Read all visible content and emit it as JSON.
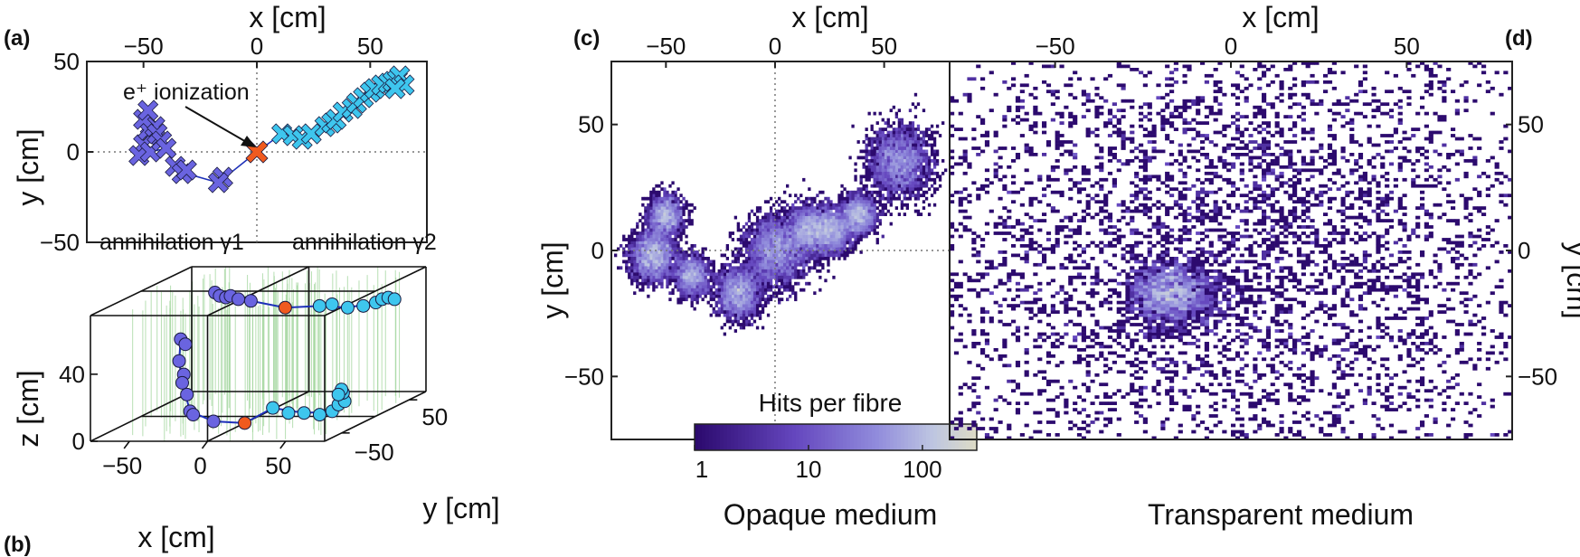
{
  "panels": {
    "a": {
      "tag": "(a)"
    },
    "b": {
      "tag": "(b)"
    },
    "c": {
      "tag": "(c)"
    },
    "d": {
      "tag": "(d)"
    }
  },
  "colors": {
    "gamma1": "#6a64e0",
    "gamma2": "#3ec6ee",
    "ionization": "#f05a1e",
    "track_line": "#1c2fb8",
    "fibres": "#9fd49a",
    "cmap_low": "#2c0a6e",
    "cmap_mid": "#8c86da",
    "cmap_high": "#d8d6c4"
  },
  "chart_data": [
    {
      "panel": "a",
      "type": "scatter",
      "xlabel": "x [cm]",
      "ylabel": "y [cm]",
      "xlim": [
        -75,
        75
      ],
      "ylim": [
        -50,
        50
      ],
      "xticks": [
        -50,
        0,
        50
      ],
      "yticks": [
        -50,
        0,
        50
      ],
      "annotation": "e⁺ ionization",
      "labels": [
        "annihilation γ1",
        "annihilation γ2"
      ],
      "series": [
        {
          "key": "gamma1",
          "values": [
            [
              -47,
              8
            ],
            [
              -50,
              4
            ],
            [
              -52,
              -2
            ],
            [
              -48,
              12
            ],
            [
              -45,
              14
            ],
            [
              -50,
              18
            ],
            [
              -48,
              23
            ],
            [
              -44,
              10
            ],
            [
              -47,
              0
            ],
            [
              -42,
              6
            ],
            [
              -40,
              2
            ],
            [
              -36,
              -8
            ],
            [
              -33,
              -12
            ],
            [
              -31,
              -10
            ],
            [
              -15,
              -14
            ],
            [
              -17,
              -17
            ]
          ]
        },
        {
          "key": "gamma2",
          "values": [
            [
              11,
              10
            ],
            [
              16,
              9
            ],
            [
              20,
              7
            ],
            [
              24,
              10
            ],
            [
              30,
              14
            ],
            [
              33,
              16
            ],
            [
              35,
              18
            ],
            [
              38,
              22
            ],
            [
              42,
              24
            ],
            [
              44,
              27
            ],
            [
              47,
              30
            ],
            [
              50,
              33
            ],
            [
              52,
              35
            ],
            [
              55,
              37
            ],
            [
              58,
              38
            ],
            [
              60,
              39
            ],
            [
              62,
              40
            ],
            [
              63,
              42
            ],
            [
              65,
              37
            ],
            [
              61,
              35
            ]
          ]
        },
        {
          "key": "ionization",
          "values": [
            [
              0,
              0
            ]
          ]
        }
      ],
      "track": [
        [
          -52,
          -2
        ],
        [
          -47,
          0
        ],
        [
          -40,
          2
        ],
        [
          -36,
          -8
        ],
        [
          -31,
          -12
        ],
        [
          -17,
          -17
        ],
        [
          -8,
          -8
        ],
        [
          0,
          0
        ],
        [
          11,
          10
        ],
        [
          20,
          7
        ],
        [
          30,
          14
        ],
        [
          38,
          22
        ],
        [
          44,
          27
        ],
        [
          50,
          33
        ],
        [
          55,
          37
        ],
        [
          60,
          39
        ],
        [
          63,
          42
        ]
      ]
    },
    {
      "panel": "b",
      "type": "scatter",
      "xlabel": "x [cm]",
      "ylabel": "y [cm]",
      "zlabel": "z [cm]",
      "xticks": [
        -50,
        0,
        50
      ],
      "yticks": [
        -50,
        50
      ],
      "zticks": [
        0,
        40
      ],
      "series": [
        {
          "key": "gamma1",
          "values": [
            [
              -45,
              40,
              66
            ],
            [
              -42,
              40,
              64
            ],
            [
              -38,
              40,
              63
            ],
            [
              -35,
              40,
              64
            ],
            [
              -30,
              40,
              62
            ],
            [
              -22,
              40,
              61
            ],
            [
              -41,
              -20,
              50
            ],
            [
              -38,
              -20,
              47
            ],
            [
              -42,
              -20,
              37
            ],
            [
              -39,
              -20,
              29
            ],
            [
              -40,
              -20,
              24
            ],
            [
              -37,
              -20,
              17
            ],
            [
              -35,
              -20,
              7
            ],
            [
              -33,
              -20,
              5
            ],
            [
              -20,
              -20,
              1
            ]
          ]
        },
        {
          "key": "gamma2",
          "values": [
            [
              22,
              40,
              58
            ],
            [
              30,
              40,
              59
            ],
            [
              40,
              40,
              57
            ],
            [
              50,
              40,
              58
            ],
            [
              58,
              40,
              60
            ],
            [
              62,
              40,
              62
            ],
            [
              66,
              40,
              63
            ],
            [
              70,
              40,
              62
            ],
            [
              18,
              -20,
              9
            ],
            [
              28,
              -20,
              6
            ],
            [
              38,
              -20,
              6
            ],
            [
              48,
              -20,
              5
            ],
            [
              56,
              -20,
              7
            ],
            [
              60,
              -20,
              11
            ],
            [
              64,
              -20,
              13
            ],
            [
              63,
              -20,
              18
            ],
            [
              62,
              -20,
              20
            ],
            [
              60,
              -20,
              17
            ]
          ]
        },
        {
          "key": "ionization",
          "values": [
            [
              0,
              40,
              57
            ],
            [
              0,
              -20,
              0
            ]
          ]
        }
      ]
    },
    {
      "panel": "c",
      "type": "heatmap",
      "xlabel": "x [cm]",
      "ylabel": "y [cm]",
      "xlim": [
        -75,
        80
      ],
      "ylim": [
        -75,
        75
      ],
      "xticks": [
        -50,
        0,
        50
      ],
      "yticks": [
        -50,
        0,
        50
      ],
      "caption": "Opaque medium",
      "colorbar": {
        "label": "Hits per fibre",
        "ticks": [
          "1",
          "10",
          "100"
        ],
        "scale": "log",
        "range": [
          1,
          300
        ]
      },
      "blobs": [
        [
          -50,
          14,
          4,
          2.2
        ],
        [
          -56,
          -2,
          5,
          3.5
        ],
        [
          -38,
          -10,
          4,
          2
        ],
        [
          -17,
          -17,
          5,
          3
        ],
        [
          0,
          0,
          7,
          4.2
        ],
        [
          16,
          8,
          5,
          2.8
        ],
        [
          26,
          8,
          4.5,
          2.4
        ],
        [
          38,
          14,
          4,
          2.3
        ],
        [
          57,
          35,
          7,
          3.8
        ]
      ]
    },
    {
      "panel": "d",
      "type": "heatmap",
      "xlabel": "x [cm]",
      "ylabel": "y [cm]",
      "xlim": [
        -80,
        80
      ],
      "ylim": [
        -75,
        75
      ],
      "xticks": [
        -50,
        0,
        50
      ],
      "yticks": [
        -50,
        0,
        50
      ],
      "caption": "Transparent medium",
      "blobs": [
        [
          0,
          0,
          45,
          1.5
        ],
        [
          -17,
          -17,
          6,
          0.6
        ]
      ]
    }
  ]
}
